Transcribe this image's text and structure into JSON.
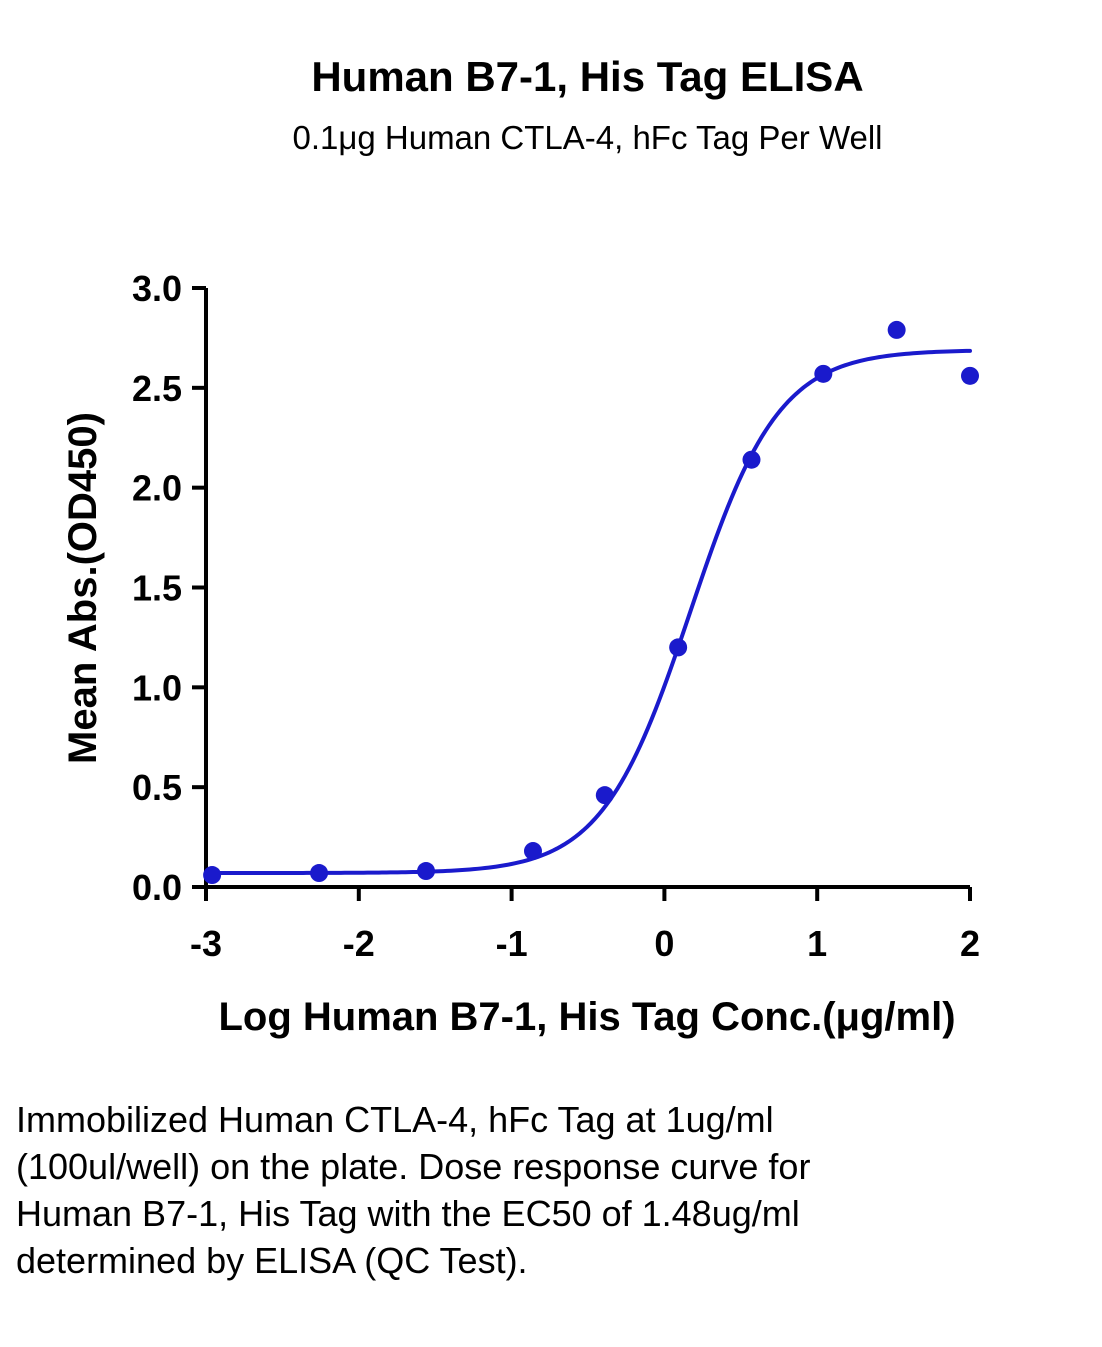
{
  "chart_data": {
    "type": "scatter",
    "title": "Human B7-1, His Tag ELISA",
    "subtitle": "0.1μg Human CTLA-4, hFc Tag Per Well",
    "xlabel": "Log Human B7-1, His Tag Conc.(μg/ml)",
    "ylabel": "Mean Abs.(OD450)",
    "xlim": [
      -3,
      2
    ],
    "ylim": [
      0,
      3
    ],
    "xticks": [
      "-3",
      "-2",
      "-1",
      "0",
      "1",
      "2"
    ],
    "yticks": [
      "0.0",
      "0.5",
      "1.0",
      "1.5",
      "2.0",
      "2.5",
      "3.0"
    ],
    "grid": false,
    "colors": {
      "series": "#1a1acc"
    },
    "series": [
      {
        "points": [
          {
            "x": -2.96,
            "y": 0.06
          },
          {
            "x": -2.26,
            "y": 0.07
          },
          {
            "x": -1.56,
            "y": 0.08
          },
          {
            "x": -0.86,
            "y": 0.18
          },
          {
            "x": -0.39,
            "y": 0.46
          },
          {
            "x": 0.09,
            "y": 1.2
          },
          {
            "x": 0.57,
            "y": 2.14
          },
          {
            "x": 1.04,
            "y": 2.57
          },
          {
            "x": 1.52,
            "y": 2.79
          },
          {
            "x": 2.0,
            "y": 2.56
          }
        ],
        "fit": {
          "model": "4PL",
          "bottom": 0.07,
          "top": 2.69,
          "log_ec50": 0.17,
          "hill_slope": 1.5
        }
      }
    ]
  },
  "caption": "Immobilized Human CTLA-4, hFc Tag at 1ug/ml (100ul/well) on the plate. Dose response curve for Human B7-1, His Tag with the EC50 of 1.48ug/ml determined by ELISA (QC Test)."
}
